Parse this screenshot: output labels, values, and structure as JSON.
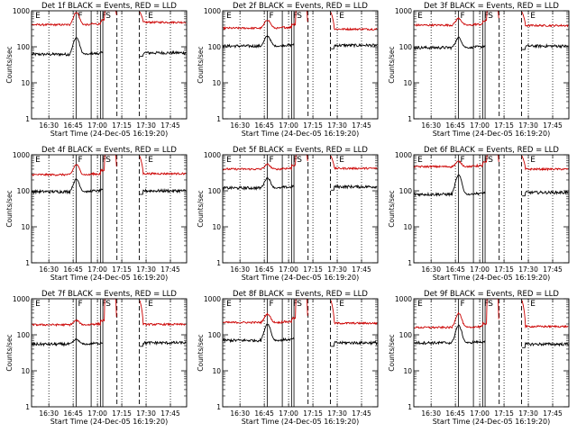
{
  "figure": {
    "background": "#ffffff",
    "colors": {
      "events": "#000000",
      "lld": "#cc0000",
      "axes": "#000000"
    }
  },
  "chart_data": [
    {
      "type": "line",
      "title": "Det 1f BLACK = Events, RED = LLD",
      "xlabel": "Start Time (24-Dec-05 16:19:20)",
      "ylabel": "Counts/sec",
      "yscale": "log",
      "ylim": [
        1,
        1000
      ],
      "x_tick_labels": [
        "16:30",
        "16:45",
        "17:00",
        "17:15",
        "17:30",
        "17:45"
      ],
      "y_tick_labels": [
        "1",
        "10",
        "100",
        "1000"
      ],
      "region_labels": [
        "E",
        "F",
        "F",
        "S",
        "E"
      ],
      "series": [
        {
          "name": "Events",
          "color": "#000000",
          "baseline": 62,
          "peak": 180,
          "post": 68
        },
        {
          "name": "LLD",
          "color": "#cc0000",
          "baseline": 410,
          "peak": 900,
          "post": 480
        }
      ]
    },
    {
      "type": "line",
      "title": "Det 2f BLACK = Events, RED = LLD",
      "xlabel": "Start Time (24-Dec-05 16:19:20)",
      "ylabel": "Counts/sec",
      "yscale": "log",
      "ylim": [
        1,
        1000
      ],
      "x_tick_labels": [
        "16:30",
        "16:45",
        "17:00",
        "17:15",
        "17:30",
        "17:45"
      ],
      "y_tick_labels": [
        "1",
        "10",
        "100",
        "1000"
      ],
      "region_labels": [
        "E",
        "F",
        "F",
        "S",
        "E"
      ],
      "series": [
        {
          "name": "Events",
          "color": "#000000",
          "baseline": 105,
          "peak": 200,
          "post": 110
        },
        {
          "name": "LLD",
          "color": "#cc0000",
          "baseline": 330,
          "peak": 560,
          "post": 310
        }
      ]
    },
    {
      "type": "line",
      "title": "Det 3f BLACK = Events, RED = LLD",
      "xlabel": "Start Time (24-Dec-05 16:19:20)",
      "ylabel": "Counts/sec",
      "yscale": "log",
      "ylim": [
        1,
        1000
      ],
      "x_tick_labels": [
        "16:30",
        "16:45",
        "17:00",
        "17:15",
        "17:30",
        "17:45"
      ],
      "y_tick_labels": [
        "1",
        "10",
        "100",
        "1000"
      ],
      "region_labels": [
        "E",
        "F",
        "F",
        "S",
        "E"
      ],
      "series": [
        {
          "name": "Events",
          "color": "#000000",
          "baseline": 95,
          "peak": 180,
          "post": 105
        },
        {
          "name": "LLD",
          "color": "#cc0000",
          "baseline": 400,
          "peak": 620,
          "post": 390
        }
      ]
    },
    {
      "type": "line",
      "title": "Det 4f BLACK = Events, RED = LLD",
      "xlabel": "Start Time (24-Dec-05 16:19:20)",
      "ylabel": "Counts/sec",
      "yscale": "log",
      "ylim": [
        1,
        1000
      ],
      "x_tick_labels": [
        "16:30",
        "16:45",
        "17:00",
        "17:15",
        "17:30",
        "17:45"
      ],
      "y_tick_labels": [
        "1",
        "10",
        "100",
        "1000"
      ],
      "region_labels": [
        "E",
        "F",
        "F",
        "S",
        "E"
      ],
      "series": [
        {
          "name": "Events",
          "color": "#000000",
          "baseline": 95,
          "peak": 210,
          "post": 100
        },
        {
          "name": "LLD",
          "color": "#cc0000",
          "baseline": 280,
          "peak": 1000,
          "post": 300
        }
      ]
    },
    {
      "type": "line",
      "title": "Det 5f BLACK = Events, RED = LLD",
      "xlabel": "Start Time (24-Dec-05 16:19:20)",
      "ylabel": "Counts/sec",
      "yscale": "log",
      "ylim": [
        1,
        1000
      ],
      "x_tick_labels": [
        "16:30",
        "16:45",
        "17:00",
        "17:15",
        "17:30",
        "17:45"
      ],
      "y_tick_labels": [
        "1",
        "10",
        "100",
        "1000"
      ],
      "region_labels": [
        "E",
        "F",
        "F",
        "S",
        "E"
      ],
      "series": [
        {
          "name": "Events",
          "color": "#000000",
          "baseline": 120,
          "peak": 230,
          "post": 130
        },
        {
          "name": "LLD",
          "color": "#cc0000",
          "baseline": 400,
          "peak": 540,
          "post": 420
        }
      ]
    },
    {
      "type": "line",
      "title": "Det 6f BLACK = Events, RED = LLD",
      "xlabel": "Start Time (24-Dec-05 16:19:20)",
      "ylabel": "Counts/sec",
      "yscale": "log",
      "ylim": [
        1,
        1000
      ],
      "x_tick_labels": [
        "16:30",
        "16:45",
        "17:00",
        "17:15",
        "17:30",
        "17:45"
      ],
      "y_tick_labels": [
        "1",
        "10",
        "100",
        "1000"
      ],
      "region_labels": [
        "E",
        "F",
        "F",
        "S",
        "E"
      ],
      "series": [
        {
          "name": "Events",
          "color": "#000000",
          "baseline": 80,
          "peak": 270,
          "post": 90
        },
        {
          "name": "LLD",
          "color": "#cc0000",
          "baseline": 470,
          "peak": 1000,
          "post": 400
        }
      ]
    },
    {
      "type": "line",
      "title": "Det 7f BLACK = Events, RED = LLD",
      "xlabel": "Start Time (24-Dec-05 16:19:20)",
      "ylabel": "Counts/sec",
      "yscale": "log",
      "ylim": [
        1,
        1000
      ],
      "x_tick_labels": [
        "16:30",
        "16:45",
        "17:00",
        "17:15",
        "17:30",
        "17:45"
      ],
      "y_tick_labels": [
        "1",
        "10",
        "100",
        "1000"
      ],
      "region_labels": [
        "E",
        "F",
        "F",
        "S",
        "E"
      ],
      "series": [
        {
          "name": "Events",
          "color": "#000000",
          "baseline": 55,
          "peak": 75,
          "post": 60
        },
        {
          "name": "LLD",
          "color": "#cc0000",
          "baseline": 190,
          "peak": 250,
          "post": 195
        }
      ]
    },
    {
      "type": "line",
      "title": "Det 8f BLACK = Events, RED = LLD",
      "xlabel": "Start Time (24-Dec-05 16:19:20)",
      "ylabel": "Counts/sec",
      "yscale": "log",
      "ylim": [
        1,
        1000
      ],
      "x_tick_labels": [
        "16:30",
        "16:45",
        "17:00",
        "17:15",
        "17:30",
        "17:45"
      ],
      "y_tick_labels": [
        "1",
        "10",
        "100",
        "1000"
      ],
      "region_labels": [
        "E",
        "F",
        "F",
        "S",
        "E"
      ],
      "series": [
        {
          "name": "Events",
          "color": "#000000",
          "baseline": 70,
          "peak": 200,
          "post": 60
        },
        {
          "name": "LLD",
          "color": "#cc0000",
          "baseline": 220,
          "peak": 380,
          "post": 210
        }
      ]
    },
    {
      "type": "line",
      "title": "Det 9f BLACK = Events, RED = LLD",
      "xlabel": "Start Time (24-Dec-05 16:19:20)",
      "ylabel": "Counts/sec",
      "yscale": "log",
      "ylim": [
        1,
        1000
      ],
      "x_tick_labels": [
        "16:30",
        "16:45",
        "17:00",
        "17:15",
        "17:30",
        "17:45"
      ],
      "y_tick_labels": [
        "1",
        "10",
        "100",
        "1000"
      ],
      "region_labels": [
        "E",
        "F",
        "F",
        "S",
        "E"
      ],
      "series": [
        {
          "name": "Events",
          "color": "#000000",
          "baseline": 60,
          "peak": 180,
          "post": 55
        },
        {
          "name": "LLD",
          "color": "#cc0000",
          "baseline": 160,
          "peak": 400,
          "post": 170
        }
      ]
    }
  ]
}
